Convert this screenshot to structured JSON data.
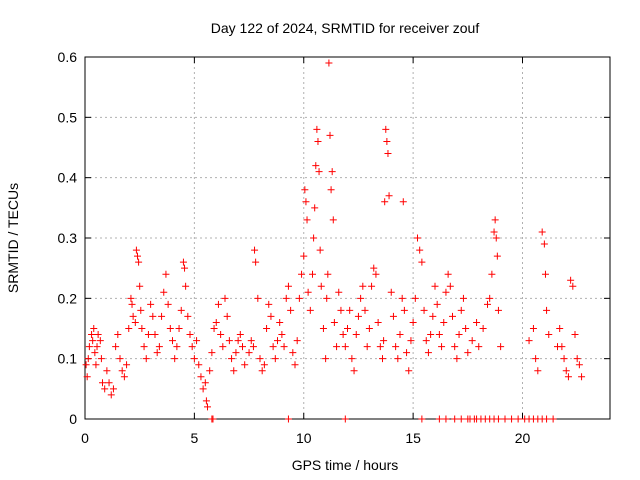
{
  "chart_data": {
    "type": "scatter",
    "title": "Day 122 of 2024, SRMTID for receiver zouf",
    "xlabel": "GPS time / hours",
    "ylabel": "SRMTID / TECUs",
    "xlim": [
      0,
      24
    ],
    "ylim": [
      0,
      0.6
    ],
    "xticks": [
      "0",
      "5",
      "10",
      "15",
      "20"
    ],
    "xtick_values": [
      0,
      5,
      10,
      15,
      20
    ],
    "yticks": [
      "0",
      "0.1",
      "0.2",
      "0.3",
      "0.4",
      "0.5",
      "0.6"
    ],
    "ytick_values": [
      0,
      0.1,
      0.2,
      0.3,
      0.4,
      0.5,
      0.6
    ],
    "grid": true,
    "marker": "+",
    "color": "#ff0000",
    "series": [
      {
        "name": "SRMTID",
        "points": [
          [
            0.05,
            0.09
          ],
          [
            0.1,
            0.07
          ],
          [
            0.15,
            0.1
          ],
          [
            0.2,
            0.12
          ],
          [
            0.3,
            0.14
          ],
          [
            0.35,
            0.13
          ],
          [
            0.4,
            0.15
          ],
          [
            0.45,
            0.11
          ],
          [
            0.5,
            0.09
          ],
          [
            0.55,
            0.12
          ],
          [
            0.6,
            0.14
          ],
          [
            0.7,
            0.13
          ],
          [
            0.75,
            0.1
          ],
          [
            0.8,
            0.06
          ],
          [
            0.9,
            0.05
          ],
          [
            1.0,
            0.08
          ],
          [
            1.1,
            0.06
          ],
          [
            1.2,
            0.04
          ],
          [
            1.3,
            0.05
          ],
          [
            1.4,
            0.12
          ],
          [
            1.5,
            0.14
          ],
          [
            1.6,
            0.1
          ],
          [
            1.7,
            0.08
          ],
          [
            1.8,
            0.07
          ],
          [
            1.9,
            0.09
          ],
          [
            2.0,
            0.15
          ],
          [
            2.1,
            0.2
          ],
          [
            2.15,
            0.19
          ],
          [
            2.2,
            0.17
          ],
          [
            2.3,
            0.16
          ],
          [
            2.35,
            0.28
          ],
          [
            2.4,
            0.27
          ],
          [
            2.45,
            0.26
          ],
          [
            2.5,
            0.22
          ],
          [
            2.55,
            0.18
          ],
          [
            2.6,
            0.15
          ],
          [
            2.7,
            0.12
          ],
          [
            2.8,
            0.1
          ],
          [
            2.9,
            0.14
          ],
          [
            3.0,
            0.19
          ],
          [
            3.1,
            0.17
          ],
          [
            3.2,
            0.14
          ],
          [
            3.3,
            0.11
          ],
          [
            3.4,
            0.12
          ],
          [
            3.5,
            0.17
          ],
          [
            3.6,
            0.21
          ],
          [
            3.7,
            0.24
          ],
          [
            3.8,
            0.19
          ],
          [
            3.9,
            0.15
          ],
          [
            4.0,
            0.13
          ],
          [
            4.1,
            0.1
          ],
          [
            4.2,
            0.12
          ],
          [
            4.3,
            0.15
          ],
          [
            4.4,
            0.18
          ],
          [
            4.5,
            0.26
          ],
          [
            4.55,
            0.25
          ],
          [
            4.6,
            0.22
          ],
          [
            4.7,
            0.17
          ],
          [
            4.8,
            0.14
          ],
          [
            4.9,
            0.12
          ],
          [
            5.0,
            0.1
          ],
          [
            5.1,
            0.13
          ],
          [
            5.2,
            0.09
          ],
          [
            5.3,
            0.07
          ],
          [
            5.4,
            0.05
          ],
          [
            5.5,
            0.06
          ],
          [
            5.55,
            0.03
          ],
          [
            5.6,
            0.02
          ],
          [
            5.7,
            0.08
          ],
          [
            5.8,
            0.11
          ],
          [
            5.9,
            0.15
          ],
          [
            6.0,
            0.16
          ],
          [
            6.1,
            0.19
          ],
          [
            6.2,
            0.14
          ],
          [
            6.3,
            0.12
          ],
          [
            6.4,
            0.2
          ],
          [
            6.5,
            0.17
          ],
          [
            6.6,
            0.13
          ],
          [
            6.7,
            0.1
          ],
          [
            6.8,
            0.08
          ],
          [
            6.9,
            0.11
          ],
          [
            7.0,
            0.13
          ],
          [
            7.1,
            0.14
          ],
          [
            7.2,
            0.12
          ],
          [
            7.3,
            0.09
          ],
          [
            7.5,
            0.11
          ],
          [
            7.6,
            0.13
          ],
          [
            7.7,
            0.12
          ],
          [
            7.75,
            0.28
          ],
          [
            7.8,
            0.26
          ],
          [
            7.9,
            0.2
          ],
          [
            8.0,
            0.1
          ],
          [
            8.1,
            0.08
          ],
          [
            8.2,
            0.09
          ],
          [
            8.3,
            0.15
          ],
          [
            8.4,
            0.19
          ],
          [
            8.5,
            0.17
          ],
          [
            8.6,
            0.12
          ],
          [
            8.7,
            0.1
          ],
          [
            8.8,
            0.13
          ],
          [
            8.9,
            0.16
          ],
          [
            9.0,
            0.14
          ],
          [
            9.1,
            0.12
          ],
          [
            9.2,
            0.2
          ],
          [
            9.3,
            0.22
          ],
          [
            9.4,
            0.18
          ],
          [
            9.5,
            0.11
          ],
          [
            9.6,
            0.09
          ],
          [
            9.7,
            0.13
          ],
          [
            9.8,
            0.2
          ],
          [
            9.9,
            0.24
          ],
          [
            10.0,
            0.27
          ],
          [
            10.05,
            0.38
          ],
          [
            10.1,
            0.36
          ],
          [
            10.15,
            0.33
          ],
          [
            10.2,
            0.21
          ],
          [
            10.3,
            0.18
          ],
          [
            10.4,
            0.24
          ],
          [
            10.45,
            0.3
          ],
          [
            10.5,
            0.35
          ],
          [
            10.55,
            0.42
          ],
          [
            10.6,
            0.48
          ],
          [
            10.65,
            0.46
          ],
          [
            10.7,
            0.41
          ],
          [
            10.75,
            0.28
          ],
          [
            10.8,
            0.22
          ],
          [
            10.9,
            0.15
          ],
          [
            11.0,
            0.1
          ],
          [
            11.05,
            0.2
          ],
          [
            11.1,
            0.24
          ],
          [
            11.15,
            0.59
          ],
          [
            11.2,
            0.47
          ],
          [
            11.25,
            0.38
          ],
          [
            11.3,
            0.41
          ],
          [
            11.35,
            0.33
          ],
          [
            11.4,
            0.16
          ],
          [
            11.5,
            0.12
          ],
          [
            11.6,
            0.21
          ],
          [
            11.7,
            0.18
          ],
          [
            11.8,
            0.14
          ],
          [
            11.9,
            0.12
          ],
          [
            12.0,
            0.15
          ],
          [
            12.1,
            0.18
          ],
          [
            12.2,
            0.1
          ],
          [
            12.3,
            0.08
          ],
          [
            12.4,
            0.14
          ],
          [
            12.5,
            0.17
          ],
          [
            12.6,
            0.2
          ],
          [
            12.7,
            0.22
          ],
          [
            12.8,
            0.18
          ],
          [
            12.9,
            0.12
          ],
          [
            13.0,
            0.15
          ],
          [
            13.1,
            0.22
          ],
          [
            13.2,
            0.25
          ],
          [
            13.3,
            0.24
          ],
          [
            13.4,
            0.16
          ],
          [
            13.5,
            0.12
          ],
          [
            13.6,
            0.1
          ],
          [
            13.65,
            0.13
          ],
          [
            13.7,
            0.36
          ],
          [
            13.75,
            0.48
          ],
          [
            13.8,
            0.46
          ],
          [
            13.85,
            0.44
          ],
          [
            13.9,
            0.37
          ],
          [
            14.0,
            0.21
          ],
          [
            14.1,
            0.17
          ],
          [
            14.2,
            0.12
          ],
          [
            14.3,
            0.1
          ],
          [
            14.4,
            0.14
          ],
          [
            14.5,
            0.2
          ],
          [
            14.55,
            0.36
          ],
          [
            14.6,
            0.18
          ],
          [
            14.7,
            0.11
          ],
          [
            14.8,
            0.08
          ],
          [
            14.9,
            0.13
          ],
          [
            15.0,
            0.16
          ],
          [
            15.1,
            0.2
          ],
          [
            15.2,
            0.3
          ],
          [
            15.3,
            0.28
          ],
          [
            15.4,
            0.26
          ],
          [
            15.5,
            0.18
          ],
          [
            15.6,
            0.13
          ],
          [
            15.7,
            0.11
          ],
          [
            15.8,
            0.14
          ],
          [
            15.9,
            0.17
          ],
          [
            16.0,
            0.22
          ],
          [
            16.1,
            0.19
          ],
          [
            16.2,
            0.14
          ],
          [
            16.3,
            0.12
          ],
          [
            16.4,
            0.16
          ],
          [
            16.5,
            0.21
          ],
          [
            16.6,
            0.24
          ],
          [
            16.7,
            0.22
          ],
          [
            16.8,
            0.17
          ],
          [
            16.9,
            0.12
          ],
          [
            17.0,
            0.1
          ],
          [
            17.1,
            0.14
          ],
          [
            17.2,
            0.18
          ],
          [
            17.3,
            0.2
          ],
          [
            17.4,
            0.15
          ],
          [
            17.5,
            0.11
          ],
          [
            17.7,
            0.13
          ],
          [
            17.9,
            0.16
          ],
          [
            18.0,
            0.12
          ],
          [
            18.2,
            0.15
          ],
          [
            18.4,
            0.19
          ],
          [
            18.5,
            0.2
          ],
          [
            18.6,
            0.24
          ],
          [
            18.7,
            0.31
          ],
          [
            18.75,
            0.33
          ],
          [
            18.8,
            0.3
          ],
          [
            18.85,
            0.27
          ],
          [
            18.9,
            0.18
          ],
          [
            19.0,
            0.12
          ],
          [
            20.3,
            0.13
          ],
          [
            20.5,
            0.15
          ],
          [
            20.6,
            0.1
          ],
          [
            20.7,
            0.08
          ],
          [
            20.9,
            0.31
          ],
          [
            21.0,
            0.29
          ],
          [
            21.05,
            0.24
          ],
          [
            21.1,
            0.18
          ],
          [
            21.2,
            0.14
          ],
          [
            21.6,
            0.12
          ],
          [
            21.7,
            0.15
          ],
          [
            21.8,
            0.12
          ],
          [
            21.9,
            0.1
          ],
          [
            22.0,
            0.08
          ],
          [
            22.1,
            0.07
          ],
          [
            22.2,
            0.23
          ],
          [
            22.3,
            0.22
          ],
          [
            22.4,
            0.14
          ],
          [
            22.5,
            0.1
          ],
          [
            22.6,
            0.09
          ],
          [
            22.7,
            0.07
          ]
        ]
      }
    ],
    "zero_points_x": [
      5.8,
      5.85,
      9.3,
      11.9,
      15.4,
      16.2,
      16.5,
      16.9,
      17.2,
      17.5,
      17.6,
      17.8,
      17.9,
      18.1,
      18.3,
      18.5,
      18.7,
      18.9,
      19.2,
      19.5,
      19.8,
      20.1,
      20.3,
      20.5,
      20.7,
      20.9,
      21.1,
      21.4
    ]
  }
}
